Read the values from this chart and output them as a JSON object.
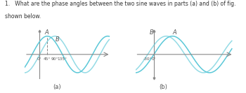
{
  "title_line1": "1.   What are the phase angles between the two sine waves in parts (a) and (b) of fig.",
  "title_line2": "shown below.",
  "wave_color": "#5bc8d8",
  "axis_color": "#888888",
  "text_color": "#555555",
  "fig_label_a": "(a)",
  "fig_label_b": "(b)",
  "xlabel_a": [
    "0°",
    "45°",
    "90°",
    "135°"
  ],
  "xlabel_b": [
    "-30°",
    "0°"
  ],
  "phase_a_deg": 45,
  "phase_b_deg": 30
}
